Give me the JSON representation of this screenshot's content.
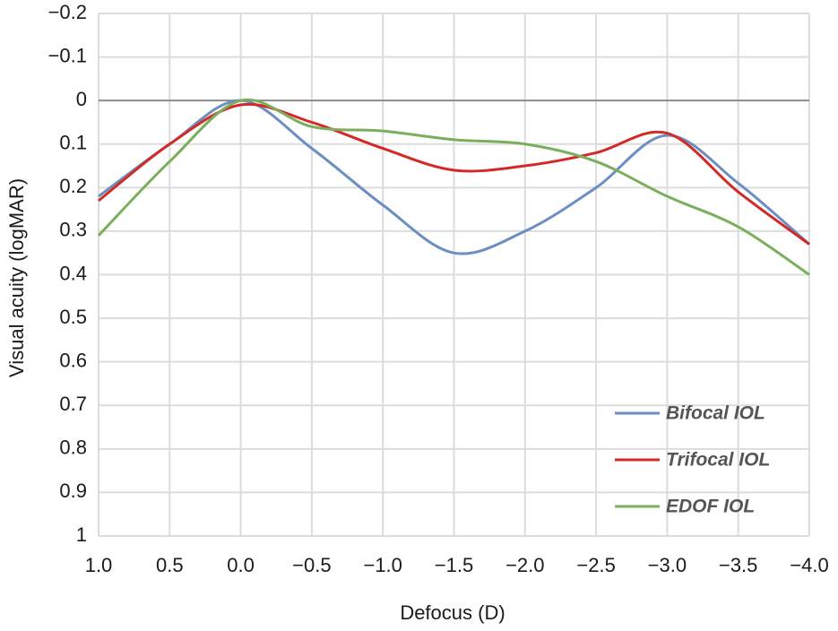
{
  "chart_data": {
    "type": "line",
    "x_label": "Defocus (D)",
    "y_label": "Visual acuity (logMAR)",
    "x": [
      1,
      0.5,
      0,
      -0.5,
      -1,
      -1.5,
      -2,
      -2.5,
      -3,
      -3.5,
      -4
    ],
    "series": [
      {
        "name": "Bifocal IOL",
        "color": "#6b8fc2",
        "values": [
          0.22,
          0.1,
          0.0,
          0.11,
          0.24,
          0.35,
          0.3,
          0.2,
          0.08,
          0.19,
          0.33
        ]
      },
      {
        "name": "Trifocal IOL",
        "color": "#d42a27",
        "values": [
          0.23,
          0.1,
          0.01,
          0.05,
          0.11,
          0.16,
          0.15,
          0.12,
          0.075,
          0.21,
          0.33
        ]
      },
      {
        "name": "EDOF IOL",
        "color": "#7aaf5c",
        "values": [
          0.31,
          0.14,
          0.0,
          0.06,
          0.07,
          0.09,
          0.1,
          0.14,
          0.22,
          0.29,
          0.4
        ]
      }
    ],
    "xlim": [
      1,
      -4
    ],
    "xticks": [
      {
        "value": 1,
        "label": "1.0"
      },
      {
        "value": 0.5,
        "label": "0.5"
      },
      {
        "value": 0,
        "label": "0.0"
      },
      {
        "value": -0.5,
        "label": "−0.5"
      },
      {
        "value": -1,
        "label": "−1.0"
      },
      {
        "value": -1.5,
        "label": "−1.5"
      },
      {
        "value": -2,
        "label": "−2.0"
      },
      {
        "value": -2.5,
        "label": "−2.5"
      },
      {
        "value": -3,
        "label": "−3.0"
      },
      {
        "value": -3.5,
        "label": "−3.5"
      },
      {
        "value": -4,
        "label": "−4.0"
      }
    ],
    "ylim": [
      -0.2,
      1
    ],
    "y_inverted": true,
    "yticks": [
      {
        "value": -0.2,
        "label": "−0.2"
      },
      {
        "value": -0.1,
        "label": "−0.1"
      },
      0,
      0.1,
      0.2,
      0.3,
      0.4,
      0.5,
      0.6,
      0.7,
      0.8,
      0.9,
      1
    ],
    "grid": true,
    "smooth": true,
    "legend_position": "lower right"
  }
}
